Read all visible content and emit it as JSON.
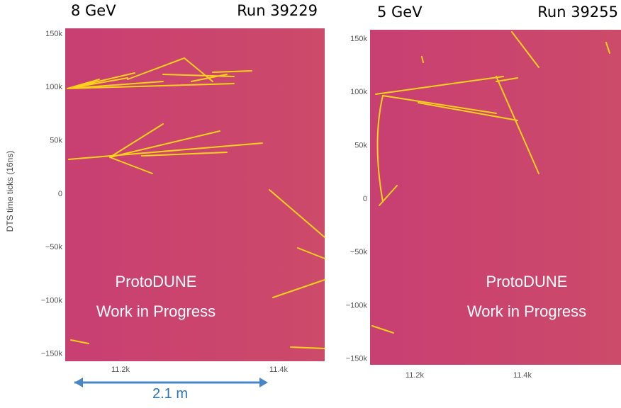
{
  "panels": [
    {
      "energy": "8 GeV",
      "run": "Run 39229",
      "y_axis_label": "DTS time ticks (16ns)",
      "y_ticks": [
        "150k",
        "100k",
        "50k",
        "0",
        "−50k",
        "−100k",
        "−150k"
      ],
      "x_ticks": [
        "11.2k",
        "11.4k"
      ],
      "overlay": [
        "ProtoDUNE",
        "Work in Progress"
      ]
    },
    {
      "energy": "5 GeV",
      "run": "Run 39255",
      "y_ticks": [
        "150k",
        "100k",
        "50k",
        "0",
        "−50k",
        "−100k",
        "−150k"
      ],
      "x_ticks": [
        "11.2k",
        "11.4k"
      ],
      "overlay": [
        "ProtoDUNE",
        "Work in Progress"
      ]
    }
  ],
  "scale_bar": "2.1 m"
}
